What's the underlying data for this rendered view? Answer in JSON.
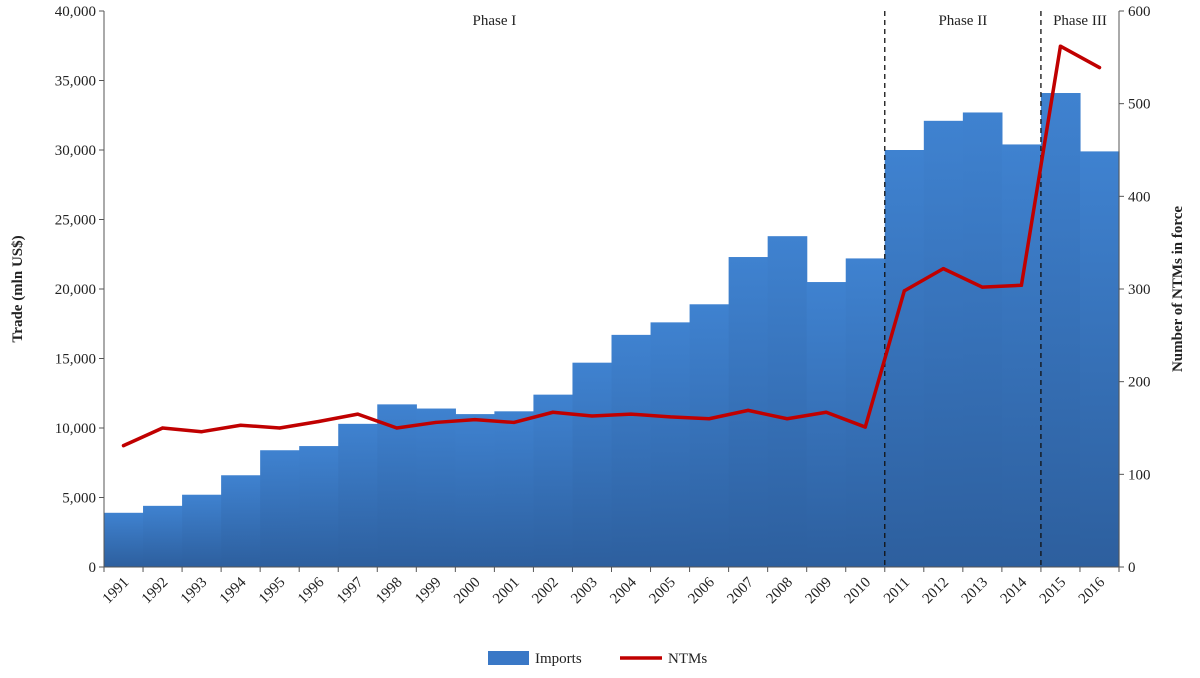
{
  "chart_data": {
    "type": "bar",
    "categories": [
      "1991",
      "1992",
      "1993",
      "1994",
      "1995",
      "1996",
      "1997",
      "1998",
      "1999",
      "2000",
      "2001",
      "2002",
      "2003",
      "2004",
      "2005",
      "2006",
      "2007",
      "2008",
      "2009",
      "2010",
      "2011",
      "2012",
      "2013",
      "2014",
      "2015",
      "2016"
    ],
    "series": [
      {
        "name": "Imports",
        "type": "bar",
        "axis": "left",
        "color": "#3a78c6",
        "values": [
          3900,
          4400,
          5200,
          6600,
          8400,
          8700,
          10300,
          11700,
          11400,
          11000,
          11200,
          12400,
          14700,
          16700,
          17600,
          18900,
          22300,
          23800,
          20500,
          22200,
          30000,
          32100,
          32700,
          30400,
          34100,
          29900
        ]
      },
      {
        "name": "NTMs",
        "type": "line",
        "axis": "right",
        "color": "#c00000",
        "values": [
          131,
          150,
          146,
          153,
          150,
          157,
          165,
          150,
          156,
          159,
          156,
          167,
          163,
          165,
          162,
          160,
          169,
          160,
          167,
          151,
          298,
          322,
          302,
          304,
          562,
          539
        ]
      }
    ],
    "title": "",
    "xlabel": "",
    "ylabel_left": "Trade (mln US$)",
    "ylabel_right": "Number of NTMs in force",
    "ylim_left": [
      0,
      40000
    ],
    "ylim_right": [
      0,
      600
    ],
    "yticks_left": [
      "0",
      "5,000",
      "10,000",
      "15,000",
      "20,000",
      "25,000",
      "30,000",
      "35,000",
      "40,000"
    ],
    "yticks_right": [
      "0",
      "100",
      "200",
      "300",
      "400",
      "500",
      "600"
    ],
    "phases": [
      {
        "label": "Phase I",
        "start": "1991",
        "end": "2010"
      },
      {
        "label": "Phase II",
        "start": "2011",
        "end": "2014"
      },
      {
        "label": "Phase III",
        "start": "2015",
        "end": "2016"
      }
    ],
    "legend": {
      "position": "bottom",
      "entries": [
        "Imports",
        "NTMs"
      ]
    },
    "grid": false
  }
}
